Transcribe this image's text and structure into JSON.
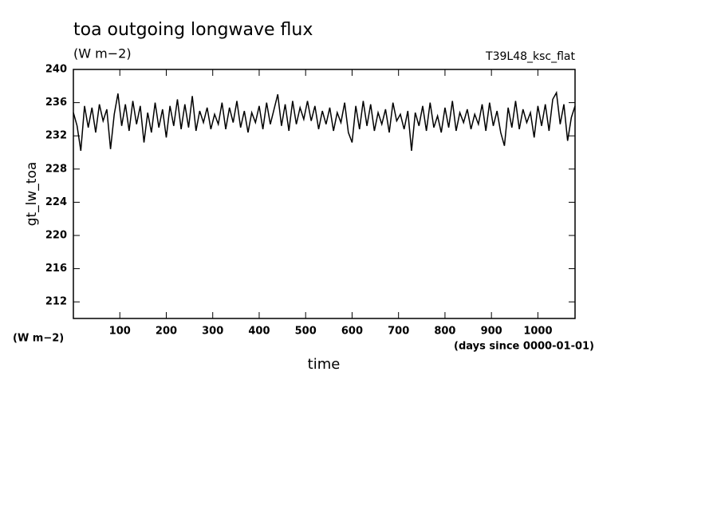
{
  "chart_data": {
    "type": "line",
    "title": "toa outgoing longwave flux",
    "subtitle": "(W m−2)",
    "annotation": "T39L48_ksc_flat",
    "ylabel": "gt_lw_toa",
    "yunit": "(W m−2)",
    "xlabel": "time",
    "xunit": "(days since 0000-01-01)",
    "xlim": [
      0,
      1080
    ],
    "ylim": [
      210,
      240
    ],
    "xticks": [
      100,
      200,
      300,
      400,
      500,
      600,
      700,
      800,
      900,
      1000
    ],
    "yticks": [
      212,
      216,
      220,
      224,
      228,
      232,
      236,
      240
    ],
    "color": "#000000",
    "x": [
      0,
      8,
      16,
      24,
      32,
      40,
      48,
      56,
      64,
      72,
      80,
      88,
      96,
      104,
      112,
      120,
      128,
      136,
      144,
      152,
      160,
      168,
      176,
      184,
      192,
      200,
      208,
      216,
      224,
      232,
      240,
      248,
      256,
      264,
      272,
      280,
      288,
      296,
      304,
      312,
      320,
      328,
      336,
      344,
      352,
      360,
      368,
      376,
      384,
      392,
      400,
      408,
      416,
      424,
      432,
      440,
      448,
      456,
      464,
      472,
      480,
      488,
      496,
      504,
      512,
      520,
      528,
      536,
      544,
      552,
      560,
      568,
      576,
      584,
      592,
      600,
      608,
      616,
      624,
      632,
      640,
      648,
      656,
      664,
      672,
      680,
      688,
      696,
      704,
      712,
      720,
      728,
      736,
      744,
      752,
      760,
      768,
      776,
      784,
      792,
      800,
      808,
      816,
      824,
      832,
      840,
      848,
      856,
      864,
      872,
      880,
      888,
      896,
      904,
      912,
      920,
      928,
      936,
      944,
      952,
      960,
      968,
      976,
      984,
      992,
      1000,
      1008,
      1016,
      1024,
      1032,
      1040,
      1048,
      1056,
      1064,
      1072,
      1080
    ],
    "values": [
      234.8,
      233.2,
      230.2,
      235.6,
      233.0,
      235.4,
      232.4,
      235.8,
      233.8,
      235.2,
      230.4,
      234.6,
      237.1,
      233.2,
      235.8,
      232.6,
      236.2,
      233.4,
      235.6,
      231.2,
      234.8,
      232.4,
      236.0,
      233.0,
      235.2,
      231.8,
      235.6,
      233.2,
      236.4,
      232.8,
      235.8,
      233.0,
      236.8,
      232.6,
      235.0,
      233.6,
      235.4,
      232.8,
      234.6,
      233.4,
      236.0,
      232.8,
      235.4,
      233.6,
      236.2,
      233.0,
      235.0,
      232.4,
      234.8,
      233.6,
      235.6,
      232.8,
      236.0,
      233.4,
      235.2,
      237.0,
      233.2,
      235.8,
      232.6,
      236.2,
      233.4,
      235.4,
      234.0,
      236.2,
      233.8,
      235.6,
      232.8,
      235.0,
      233.4,
      235.4,
      232.6,
      234.8,
      233.6,
      236.0,
      232.4,
      231.2,
      235.6,
      232.8,
      236.2,
      233.2,
      235.8,
      232.6,
      234.8,
      233.4,
      235.2,
      232.4,
      236.0,
      233.8,
      234.6,
      232.8,
      235.0,
      230.2,
      234.8,
      233.2,
      235.6,
      232.6,
      236.0,
      233.0,
      234.4,
      232.4,
      235.4,
      233.0,
      236.2,
      232.6,
      234.8,
      233.6,
      235.2,
      232.8,
      234.6,
      233.4,
      235.8,
      232.6,
      236.0,
      233.2,
      235.0,
      232.4,
      230.8,
      235.4,
      233.0,
      236.2,
      232.8,
      235.2,
      233.6,
      234.8,
      231.8,
      235.6,
      233.2,
      235.8,
      232.6,
      236.4,
      237.2,
      233.4,
      235.8,
      231.4,
      234.2,
      235.6
    ]
  }
}
